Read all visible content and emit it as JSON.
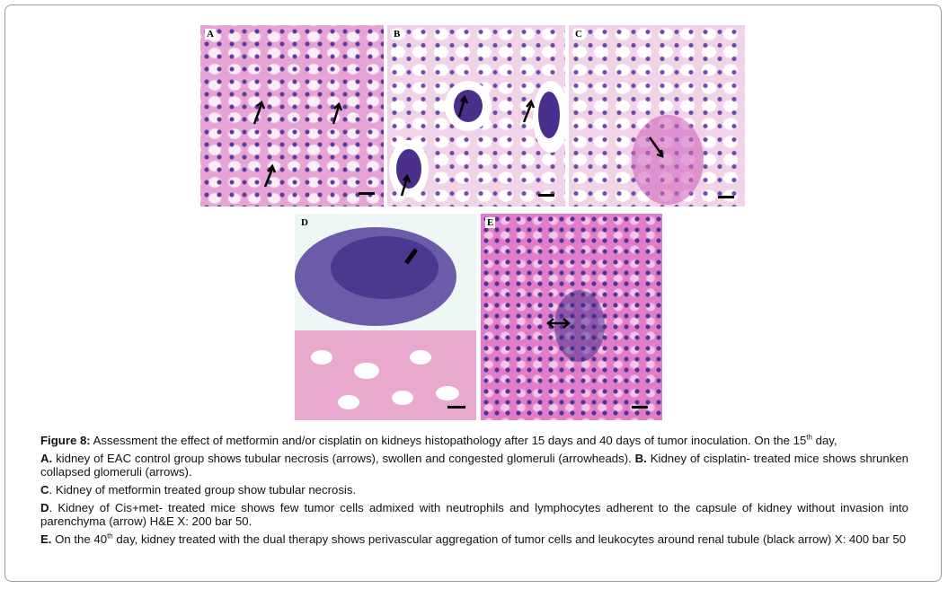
{
  "panels": [
    {
      "label": "A"
    },
    {
      "label": "B"
    },
    {
      "label": "C"
    },
    {
      "label": "D"
    },
    {
      "label": "E"
    }
  ],
  "caption": {
    "figure_label": "Figure 8:",
    "text": " Assessment the effect of metformin and/or cisplatin on kidneys histopathology after 15 days and 40 days of tumor inoculation.  On the 15",
    "sup": "th",
    "text_end": " day,"
  },
  "paragraphs": [
    {
      "label": "A.",
      "text": " kidney of EAC control group shows tubular necrosis (arrows), swollen and congested glomeruli (arrowheads).  ",
      "label2": "B.",
      "text2": " Kidney of cisplatin- treated mice shows shrunken collapsed glomeruli (arrows)."
    },
    {
      "label": "C",
      "text": ". Kidney of metformin treated group show tubular necrosis."
    },
    {
      "label": "D",
      "text": ". Kidney of Cis+met- treated mice shows few tumor cells admixed with neutrophils and lymphocytes adherent to the capsule of kidney without invasion into parenchyma (arrow) H&E X: 200 bar 50."
    },
    {
      "label": "E.",
      "text": " On the 40",
      "sup": "th",
      "text_end": " day, kidney treated with the dual therapy shows perivascular aggregation of tumor cells and leukocytes around renal tubule (black arrow) X: 400 bar 50"
    }
  ]
}
